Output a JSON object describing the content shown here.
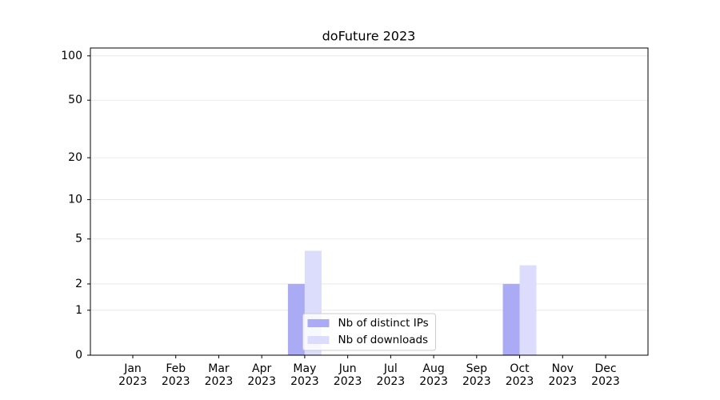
{
  "chart_data": {
    "type": "bar",
    "title": "doFuture 2023",
    "categories": [
      "Jan\n2023",
      "Feb\n2023",
      "Mar\n2023",
      "Apr\n2023",
      "May\n2023",
      "Jun\n2023",
      "Jul\n2023",
      "Aug\n2023",
      "Sep\n2023",
      "Oct\n2023",
      "Nov\n2023",
      "Dec\n2023"
    ],
    "series": [
      {
        "name": "Nb of distinct IPs",
        "color": "#aaaaf5",
        "values": [
          0,
          0,
          0,
          0,
          2,
          0,
          0,
          0,
          0,
          2,
          0,
          0
        ]
      },
      {
        "name": "Nb of downloads",
        "color": "#dcdcfc",
        "values": [
          0,
          0,
          0,
          0,
          4,
          0,
          0,
          0,
          0,
          3,
          0,
          0
        ]
      }
    ],
    "yscale": "log1p",
    "ylim": [
      0,
      113
    ],
    "yticks": [
      0,
      1,
      2,
      5,
      10,
      20,
      50,
      100
    ],
    "grid": true,
    "legend": "lower center"
  }
}
